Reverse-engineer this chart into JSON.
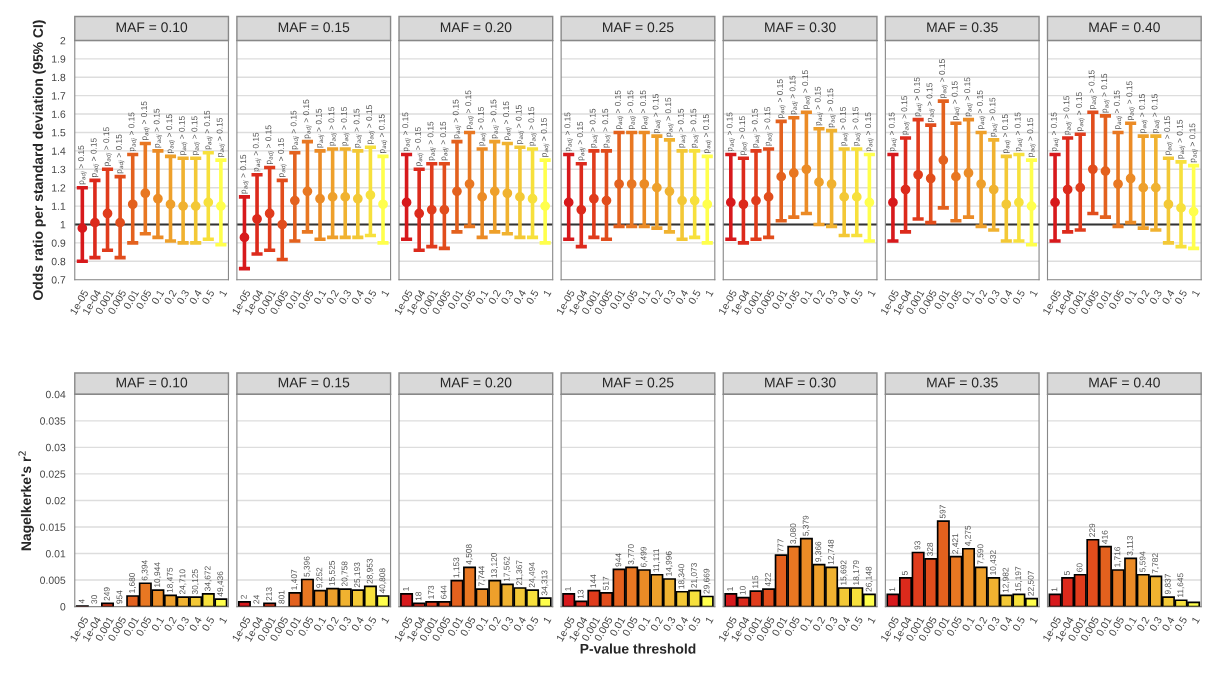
{
  "chart_data": [
    {
      "type": "scatter",
      "title": "MAF = 0.10",
      "ylabel": "Odds ratio per standard deviation (95% CI)",
      "categories": [
        "1e-05",
        "1e-04",
        "0.001",
        "0.005",
        "0.01",
        "0.05",
        "0.1",
        "0.2",
        "0.3",
        "0.4",
        "0.5",
        "1"
      ],
      "colors": [
        "#d7191c",
        "#dc2a1c",
        "#e03c1c",
        "#e14d1c",
        "#e3611e",
        "#e87722",
        "#eb8b26",
        "#eea02b",
        "#f0b230",
        "#f3c836",
        "#f7e03c",
        "#ffff4c"
      ],
      "marker": "circle",
      "values": [
        0.98,
        1.01,
        1.06,
        1.01,
        1.11,
        1.17,
        1.14,
        1.11,
        1.1,
        1.1,
        1.12,
        1.1
      ],
      "errors": [
        [
          0.8,
          1.2
        ],
        [
          0.82,
          1.24
        ],
        [
          0.86,
          1.3
        ],
        [
          0.82,
          1.26
        ],
        [
          0.9,
          1.38
        ],
        [
          0.95,
          1.44
        ],
        [
          0.93,
          1.4
        ],
        [
          0.91,
          1.37
        ],
        [
          0.9,
          1.36
        ],
        [
          0.9,
          1.36
        ],
        [
          0.92,
          1.39
        ],
        [
          0.89,
          1.35
        ]
      ],
      "ylim": [
        0.7,
        2
      ],
      "yticks": [
        0.7,
        0.8,
        0.9,
        1,
        1.1,
        1.2,
        1.3,
        1.4,
        1.5,
        1.6,
        1.7,
        1.8,
        1.9,
        2
      ],
      "ref_lines": [
        {
          "axis": "y",
          "value": 1,
          "color": "#333333"
        }
      ],
      "grid": "y",
      "annotations": [
        {
          "text": "p$_{adj}$ > 0.15",
          "x": "1e-05",
          "y": 1.2
        },
        {
          "text": "p$_{adj}$ > 0.15",
          "x": "1e-04",
          "y": 1.24
        },
        {
          "text": "p$_{adj}$ > 0.15",
          "x": "0.001",
          "y": 1.3
        },
        {
          "text": "p$_{adj}$ > 0.15",
          "x": "0.005",
          "y": 1.26
        },
        {
          "text": "p$_{adj}$ > 0.15",
          "x": "0.01",
          "y": 1.38
        },
        {
          "text": "p$_{adj}$ > 0.15",
          "x": "0.05",
          "y": 1.44
        },
        {
          "text": "p$_{adj}$ > 0.15",
          "x": "0.1",
          "y": 1.4
        },
        {
          "text": "p$_{adj}$ > 0.15",
          "x": "0.2",
          "y": 1.37
        },
        {
          "text": "p$_{adj}$ > 0.15",
          "x": "0.3",
          "y": 1.36
        },
        {
          "text": "p$_{adj}$ > 0.15",
          "x": "0.4",
          "y": 1.36
        },
        {
          "text": "p$_{adj}$ > 0.15",
          "x": "0.5",
          "y": 1.39
        },
        {
          "text": "p$_{adj}$ > 0.15",
          "x": "1",
          "y": 1.35
        }
      ]
    },
    {
      "type": "scatter",
      "title": "MAF = 0.15",
      "categories": [
        "1e-05",
        "1e-04",
        "0.001",
        "0.005",
        "0.01",
        "0.05",
        "0.1",
        "0.2",
        "0.3",
        "0.4",
        "0.5",
        "1"
      ],
      "colors": [
        "#d7191c",
        "#dc2a1c",
        "#e03c1c",
        "#e14d1c",
        "#e3611e",
        "#e87722",
        "#eb8b26",
        "#eea02b",
        "#f0b230",
        "#f3c836",
        "#f7e03c",
        "#ffff4c"
      ],
      "marker": "circle",
      "values": [
        0.93,
        1.03,
        1.06,
        1.0,
        1.13,
        1.18,
        1.14,
        1.15,
        1.15,
        1.14,
        1.16,
        1.11
      ],
      "errors": [
        [
          0.76,
          1.15
        ],
        [
          0.84,
          1.27
        ],
        [
          0.86,
          1.31
        ],
        [
          0.81,
          1.24
        ],
        [
          0.91,
          1.39
        ],
        [
          0.96,
          1.45
        ],
        [
          0.92,
          1.4
        ],
        [
          0.93,
          1.41
        ],
        [
          0.93,
          1.41
        ],
        [
          0.93,
          1.4
        ],
        [
          0.94,
          1.42
        ],
        [
          0.9,
          1.37
        ]
      ],
      "ylim": [
        0.7,
        2
      ],
      "yticks": [
        0.7,
        0.8,
        0.9,
        1,
        1.1,
        1.2,
        1.3,
        1.4,
        1.5,
        1.6,
        1.7,
        1.8,
        1.9,
        2
      ],
      "ref_lines": [
        {
          "axis": "y",
          "value": 1,
          "color": "#333333"
        }
      ],
      "grid": "y",
      "tick_labels": "x",
      "annotations": [
        {
          "text": "p$_{adj}$ > 0.15",
          "x": "1e-05",
          "y": 1.15
        },
        {
          "text": "p$_{adj}$ > 0.15",
          "x": "1e-04",
          "y": 1.27
        },
        {
          "text": "p$_{adj}$ > 0.15",
          "x": "0.001",
          "y": 1.31
        },
        {
          "text": "p$_{adj}$ > 0.15",
          "x": "0.005",
          "y": 1.24
        },
        {
          "text": "p$_{adj}$ > 0.15",
          "x": "0.01",
          "y": 1.39
        },
        {
          "text": "p$_{adj}$ > 0.15",
          "x": "0.05",
          "y": 1.45
        },
        {
          "text": "p$_{adj}$ > 0.15",
          "x": "0.1",
          "y": 1.4
        },
        {
          "text": "p$_{adj}$ > 0.15",
          "x": "0.2",
          "y": 1.41
        },
        {
          "text": "p$_{adj}$ > 0.15",
          "x": "0.3",
          "y": 1.41
        },
        {
          "text": "p$_{adj}$ > 0.15",
          "x": "0.4",
          "y": 1.4
        },
        {
          "text": "p$_{adj}$ > 0.15",
          "x": "0.5",
          "y": 1.42
        },
        {
          "text": "p$_{adj}$ > 0.15",
          "x": "1",
          "y": 1.37
        }
      ]
    },
    {
      "type": "scatter",
      "title": "MAF = 0.20",
      "categories": [
        "1e-05",
        "1e-04",
        "0.001",
        "0.005",
        "0.01",
        "0.05",
        "0.1",
        "0.2",
        "0.3",
        "0.4",
        "0.5",
        "1"
      ],
      "colors": [
        "#d7191c",
        "#dc2a1c",
        "#e03c1c",
        "#e14d1c",
        "#e3611e",
        "#e87722",
        "#eb8b26",
        "#eea02b",
        "#f0b230",
        "#f3c836",
        "#f7e03c",
        "#ffff4c"
      ],
      "marker": "circle",
      "values": [
        1.12,
        1.06,
        1.08,
        1.08,
        1.18,
        1.22,
        1.15,
        1.18,
        1.17,
        1.15,
        1.14,
        1.1
      ],
      "errors": [
        [
          0.92,
          1.38
        ],
        [
          0.86,
          1.3
        ],
        [
          0.88,
          1.33
        ],
        [
          0.87,
          1.33
        ],
        [
          0.96,
          1.45
        ],
        [
          0.99,
          1.5
        ],
        [
          0.93,
          1.41
        ],
        [
          0.96,
          1.45
        ],
        [
          0.95,
          1.44
        ],
        [
          0.93,
          1.42
        ],
        [
          0.93,
          1.41
        ],
        [
          0.9,
          1.35
        ]
      ],
      "ylim": [
        0.7,
        2
      ],
      "yticks": [
        0.7,
        0.8,
        0.9,
        1,
        1.1,
        1.2,
        1.3,
        1.4,
        1.5,
        1.6,
        1.7,
        1.8,
        1.9,
        2
      ],
      "ref_lines": [
        {
          "axis": "y",
          "value": 1,
          "color": "#333333"
        }
      ],
      "grid": "y",
      "tick_labels": "x",
      "annotations": [
        {
          "text": "p$_{adj}$ > 0.15",
          "x": "1e-05",
          "y": 1.38
        },
        {
          "text": "p$_{adj}$ > 0.15",
          "x": "1e-04",
          "y": 1.3
        },
        {
          "text": "p$_{adj}$ > 0.15",
          "x": "0.001",
          "y": 1.33
        },
        {
          "text": "p$_{adj}$ > 0.15",
          "x": "0.005",
          "y": 1.33
        },
        {
          "text": "p$_{adj}$ > 0.15",
          "x": "0.01",
          "y": 1.45
        },
        {
          "text": "p$_{adj}$ > 0.15",
          "x": "0.05",
          "y": 1.5
        },
        {
          "text": "p$_{adj}$ > 0.15",
          "x": "0.1",
          "y": 1.41
        },
        {
          "text": "p$_{adj}$ > 0.15",
          "x": "0.2",
          "y": 1.45
        },
        {
          "text": "p$_{adj}$ > 0.15",
          "x": "0.3",
          "y": 1.44
        },
        {
          "text": "p$_{adj}$ > 0.15",
          "x": "0.4",
          "y": 1.42
        },
        {
          "text": "p$_{adj}$ > 0.15",
          "x": "0.5",
          "y": 1.41
        },
        {
          "text": "p$_{adj}$ > 0.15",
          "x": "1",
          "y": 1.35
        }
      ]
    },
    {
      "type": "scatter",
      "title": "MAF = 0.25",
      "categories": [
        "1e-05",
        "1e-04",
        "0.001",
        "0.005",
        "0.01",
        "0.05",
        "0.1",
        "0.2",
        "0.3",
        "0.4",
        "0.5",
        "1"
      ],
      "colors": [
        "#d7191c",
        "#dc2a1c",
        "#e03c1c",
        "#e14d1c",
        "#e3611e",
        "#e87722",
        "#eb8b26",
        "#eea02b",
        "#f0b230",
        "#f3c836",
        "#f7e03c",
        "#ffff4c"
      ],
      "marker": "circle",
      "values": [
        1.12,
        1.08,
        1.14,
        1.13,
        1.22,
        1.22,
        1.22,
        1.2,
        1.18,
        1.13,
        1.13,
        1.11
      ],
      "errors": [
        [
          0.92,
          1.38
        ],
        [
          0.88,
          1.33
        ],
        [
          0.93,
          1.4
        ],
        [
          0.92,
          1.4
        ],
        [
          0.99,
          1.5
        ],
        [
          0.99,
          1.5
        ],
        [
          0.99,
          1.5
        ],
        [
          0.98,
          1.48
        ],
        [
          0.96,
          1.46
        ],
        [
          0.92,
          1.4
        ],
        [
          0.93,
          1.4
        ],
        [
          0.9,
          1.37
        ]
      ],
      "ylim": [
        0.7,
        2
      ],
      "yticks": [
        0.7,
        0.8,
        0.9,
        1,
        1.1,
        1.2,
        1.3,
        1.4,
        1.5,
        1.6,
        1.7,
        1.8,
        1.9,
        2
      ],
      "ref_lines": [
        {
          "axis": "y",
          "value": 1,
          "color": "#333333"
        }
      ],
      "grid": "y",
      "tick_labels": "x",
      "annotations": [
        {
          "text": "p$_{adj}$ > 0.15",
          "x": "1e-05",
          "y": 1.38
        },
        {
          "text": "p$_{adj}$ > 0.15",
          "x": "1e-04",
          "y": 1.33
        },
        {
          "text": "p$_{adj}$ > 0.15",
          "x": "0.001",
          "y": 1.4
        },
        {
          "text": "p$_{adj}$ > 0.15",
          "x": "0.005",
          "y": 1.4
        },
        {
          "text": "p$_{adj}$ > 0.15",
          "x": "0.01",
          "y": 1.5
        },
        {
          "text": "p$_{adj}$ > 0.15",
          "x": "0.05",
          "y": 1.5
        },
        {
          "text": "p$_{adj}$ > 0.15",
          "x": "0.1",
          "y": 1.5
        },
        {
          "text": "p$_{adj}$ > 0.15",
          "x": "0.2",
          "y": 1.48
        },
        {
          "text": "p$_{adj}$ > 0.15",
          "x": "0.3",
          "y": 1.46
        },
        {
          "text": "p$_{adj}$ > 0.15",
          "x": "0.4",
          "y": 1.4
        },
        {
          "text": "p$_{adj}$ > 0.15",
          "x": "0.5",
          "y": 1.4
        },
        {
          "text": "p$_{adj}$ > 0.15",
          "x": "1",
          "y": 1.37
        }
      ]
    },
    {
      "type": "scatter",
      "title": "MAF = 0.30",
      "categories": [
        "1e-05",
        "1e-04",
        "0.001",
        "0.005",
        "0.01",
        "0.05",
        "0.1",
        "0.2",
        "0.3",
        "0.4",
        "0.5",
        "1"
      ],
      "colors": [
        "#d7191c",
        "#dc2a1c",
        "#e03c1c",
        "#e14d1c",
        "#e3611e",
        "#e87722",
        "#eb8b26",
        "#eea02b",
        "#f0b230",
        "#f3c836",
        "#f7e03c",
        "#ffff4c"
      ],
      "marker": "circle",
      "values": [
        1.12,
        1.11,
        1.13,
        1.15,
        1.26,
        1.28,
        1.3,
        1.23,
        1.22,
        1.15,
        1.15,
        1.12
      ],
      "errors": [
        [
          0.92,
          1.38
        ],
        [
          0.9,
          1.36
        ],
        [
          0.92,
          1.4
        ],
        [
          0.93,
          1.41
        ],
        [
          1.02,
          1.56
        ],
        [
          1.04,
          1.58
        ],
        [
          1.06,
          1.61
        ],
        [
          1.0,
          1.52
        ],
        [
          0.99,
          1.51
        ],
        [
          0.94,
          1.41
        ],
        [
          0.94,
          1.41
        ],
        [
          0.91,
          1.38
        ]
      ],
      "ylim": [
        0.7,
        2
      ],
      "yticks": [
        0.7,
        0.8,
        0.9,
        1,
        1.1,
        1.2,
        1.3,
        1.4,
        1.5,
        1.6,
        1.7,
        1.8,
        1.9,
        2
      ],
      "ref_lines": [
        {
          "axis": "y",
          "value": 1,
          "color": "#333333"
        }
      ],
      "grid": "y",
      "tick_labels": "x",
      "annotations": [
        {
          "text": "p$_{adj}$ > 0.15",
          "x": "1e-05",
          "y": 1.38
        },
        {
          "text": "p$_{adj}$ > 0.15",
          "x": "1e-04",
          "y": 1.36
        },
        {
          "text": "p$_{adj}$ > 0.15",
          "x": "0.001",
          "y": 1.4
        },
        {
          "text": "p$_{adj}$ > 0.15",
          "x": "0.005",
          "y": 1.41
        },
        {
          "text": "p$_{adj}$ > 0.15",
          "x": "0.01",
          "y": 1.56
        },
        {
          "text": "p$_{adj}$ > 0.15",
          "x": "0.05",
          "y": 1.58
        },
        {
          "text": "p$_{adj}$ > 0.15",
          "x": "0.1",
          "y": 1.61
        },
        {
          "text": "p$_{adj}$ > 0.15",
          "x": "0.2",
          "y": 1.52
        },
        {
          "text": "p$_{adj}$ > 0.15",
          "x": "0.3",
          "y": 1.51
        },
        {
          "text": "p$_{adj}$ > 0.15",
          "x": "0.4",
          "y": 1.41
        },
        {
          "text": "p$_{adj}$ > 0.15",
          "x": "0.5",
          "y": 1.41
        },
        {
          "text": "p$_{adj}$ > 0.15",
          "x": "1",
          "y": 1.38
        }
      ]
    },
    {
      "type": "scatter",
      "title": "MAF = 0.35",
      "categories": [
        "1e-05",
        "1e-04",
        "0.001",
        "0.005",
        "0.01",
        "0.05",
        "0.1",
        "0.2",
        "0.3",
        "0.4",
        "0.5",
        "1"
      ],
      "colors": [
        "#d7191c",
        "#dc2a1c",
        "#e03c1c",
        "#e14d1c",
        "#e3611e",
        "#e87722",
        "#eb8b26",
        "#eea02b",
        "#f0b230",
        "#f3c836",
        "#f7e03c",
        "#ffff4c"
      ],
      "marker": "circle",
      "values": [
        1.12,
        1.19,
        1.27,
        1.25,
        1.35,
        1.26,
        1.28,
        1.22,
        1.19,
        1.11,
        1.12,
        1.1
      ],
      "errors": [
        [
          0.91,
          1.38
        ],
        [
          0.96,
          1.47
        ],
        [
          1.03,
          1.57
        ],
        [
          1.01,
          1.54
        ],
        [
          1.09,
          1.67
        ],
        [
          1.02,
          1.55
        ],
        [
          1.04,
          1.57
        ],
        [
          0.99,
          1.5
        ],
        [
          0.97,
          1.46
        ],
        [
          0.91,
          1.37
        ],
        [
          0.91,
          1.38
        ],
        [
          0.89,
          1.35
        ]
      ],
      "ylim": [
        0.7,
        2
      ],
      "yticks": [
        0.7,
        0.8,
        0.9,
        1,
        1.1,
        1.2,
        1.3,
        1.4,
        1.5,
        1.6,
        1.7,
        1.8,
        1.9,
        2
      ],
      "ref_lines": [
        {
          "axis": "y",
          "value": 1,
          "color": "#333333"
        }
      ],
      "grid": "y",
      "tick_labels": "x",
      "annotations": [
        {
          "text": "p$_{adj}$ > 0.15",
          "x": "1e-05",
          "y": 1.38
        },
        {
          "text": "p$_{adj}$ > 0.15",
          "x": "1e-04",
          "y": 1.47
        },
        {
          "text": "p$_{adj}$ > 0.15",
          "x": "0.001",
          "y": 1.57
        },
        {
          "text": "p$_{adj}$ > 0.15",
          "x": "0.005",
          "y": 1.54
        },
        {
          "text": "p$_{adj}$ > 0.15",
          "x": "0.01",
          "y": 1.67
        },
        {
          "text": "p$_{adj}$ > 0.15",
          "x": "0.05",
          "y": 1.55
        },
        {
          "text": "p$_{adj}$ > 0.15",
          "x": "0.1",
          "y": 1.57
        },
        {
          "text": "p$_{adj}$ > 0.15",
          "x": "0.2",
          "y": 1.5
        },
        {
          "text": "p$_{adj}$ > 0.15",
          "x": "0.3",
          "y": 1.46
        },
        {
          "text": "p$_{adj}$ > 0.15",
          "x": "0.4",
          "y": 1.37
        },
        {
          "text": "p$_{adj}$ > 0.15",
          "x": "0.5",
          "y": 1.38
        },
        {
          "text": "p$_{adj}$ > 0.15",
          "x": "1",
          "y": 1.35
        }
      ]
    },
    {
      "type": "scatter",
      "title": "MAF = 0.40",
      "categories": [
        "1e-05",
        "1e-04",
        "0.001",
        "0.005",
        "0.01",
        "0.05",
        "0.1",
        "0.2",
        "0.3",
        "0.4",
        "0.5",
        "1"
      ],
      "colors": [
        "#d7191c",
        "#dc2a1c",
        "#e03c1c",
        "#e14d1c",
        "#e3611e",
        "#e87722",
        "#eb8b26",
        "#eea02b",
        "#f0b230",
        "#f3c836",
        "#f7e03c",
        "#ffff4c"
      ],
      "marker": "circle",
      "values": [
        1.12,
        1.19,
        1.2,
        1.3,
        1.29,
        1.22,
        1.25,
        1.2,
        1.2,
        1.11,
        1.09,
        1.07
      ],
      "errors": [
        [
          0.91,
          1.38
        ],
        [
          0.96,
          1.47
        ],
        [
          0.97,
          1.49
        ],
        [
          1.06,
          1.61
        ],
        [
          1.04,
          1.59
        ],
        [
          0.99,
          1.5
        ],
        [
          1.01,
          1.55
        ],
        [
          0.98,
          1.48
        ],
        [
          0.97,
          1.48
        ],
        [
          0.9,
          1.36
        ],
        [
          0.88,
          1.34
        ],
        [
          0.87,
          1.32
        ]
      ],
      "ylim": [
        0.7,
        2
      ],
      "yticks": [
        0.7,
        0.8,
        0.9,
        1,
        1.1,
        1.2,
        1.3,
        1.4,
        1.5,
        1.6,
        1.7,
        1.8,
        1.9,
        2
      ],
      "ref_lines": [
        {
          "axis": "y",
          "value": 1,
          "color": "#333333"
        }
      ],
      "grid": "y",
      "tick_labels": "x",
      "annotations": [
        {
          "text": "p$_{adj}$ > 0.15",
          "x": "1e-05",
          "y": 1.38
        },
        {
          "text": "p$_{adj}$ > 0.15",
          "x": "1e-04",
          "y": 1.47
        },
        {
          "text": "p$_{adj}$ > 0.15",
          "x": "0.001",
          "y": 1.49
        },
        {
          "text": "p$_{adj}$ > 0.15",
          "x": "0.005",
          "y": 1.61
        },
        {
          "text": "p$_{adj}$ > 0.15",
          "x": "0.01",
          "y": 1.59
        },
        {
          "text": "p$_{adj}$ > 0.15",
          "x": "0.05",
          "y": 1.5
        },
        {
          "text": "p$_{adj}$ > 0.15",
          "x": "0.1",
          "y": 1.55
        },
        {
          "text": "p$_{adj}$ > 0.15",
          "x": "0.2",
          "y": 1.48
        },
        {
          "text": "p$_{adj}$ > 0.15",
          "x": "0.3",
          "y": 1.48
        },
        {
          "text": "p$_{adj}$ > 0.15",
          "x": "0.4",
          "y": 1.36
        },
        {
          "text": "p$_{adj}$ > 0.15",
          "x": "0.5",
          "y": 1.34
        },
        {
          "text": "p$_{adj}$ > 0.15",
          "x": "1",
          "y": 1.32
        }
      ]
    },
    {
      "type": "bar",
      "title": "MAF = 0.10",
      "ylabel": "Nagelkerke's r$^{2}$",
      "categories": [
        "1e-05",
        "1e-04",
        "0.001",
        "0.005",
        "0.01",
        "0.05",
        "0.1",
        "0.2",
        "0.3",
        "0.4",
        "0.5",
        "1"
      ],
      "colors": [
        "#d7191c",
        "#dc2a1c",
        "#e03c1c",
        "#e14d1c",
        "#e3611e",
        "#e87722",
        "#eb8b26",
        "#eea02b",
        "#f0b230",
        "#f3c836",
        "#f7e03c",
        "#ffff4c"
      ],
      "values": [
        0.0001,
        0,
        0.0006,
        0,
        0.002,
        0.0044,
        0.0031,
        0.0021,
        0.0018,
        0.0018,
        0.0024,
        0.0014
      ],
      "ylim": [
        0,
        0.04
      ],
      "yticks": [
        0,
        0.005,
        0.01,
        0.015,
        0.02,
        0.025,
        0.03,
        0.035,
        0.04
      ],
      "grid": "y",
      "annotations": [
        {
          "text": "4",
          "x": "1e-05",
          "y": 0.0001
        },
        {
          "text": "30",
          "x": "1e-04",
          "y": 0
        },
        {
          "text": "249",
          "x": "0.001",
          "y": 0.0006
        },
        {
          "text": "954",
          "x": "0.005",
          "y": 0
        },
        {
          "text": "1,680",
          "x": "0.01",
          "y": 0.002
        },
        {
          "text": "6,394",
          "x": "0.05",
          "y": 0.0044
        },
        {
          "text": "10,944",
          "x": "0.1",
          "y": 0.0031
        },
        {
          "text": "18,475",
          "x": "0.2",
          "y": 0.0021
        },
        {
          "text": "24,710",
          "x": "0.3",
          "y": 0.0018
        },
        {
          "text": "30,125",
          "x": "0.4",
          "y": 0.0018
        },
        {
          "text": "34,672",
          "x": "0.5",
          "y": 0.0024
        },
        {
          "text": "49,436",
          "x": "1",
          "y": 0.0014
        }
      ]
    },
    {
      "type": "bar",
      "title": "MAF = 0.15",
      "categories": [
        "1e-05",
        "1e-04",
        "0.001",
        "0.005",
        "0.01",
        "0.05",
        "0.1",
        "0.2",
        "0.3",
        "0.4",
        "0.5",
        "1"
      ],
      "colors": [
        "#d7191c",
        "#dc2a1c",
        "#e03c1c",
        "#e14d1c",
        "#e3611e",
        "#e87722",
        "#eb8b26",
        "#eea02b",
        "#f0b230",
        "#f3c836",
        "#f7e03c",
        "#ffff4c"
      ],
      "values": [
        0.0009,
        0,
        0.0006,
        0,
        0.0026,
        0.0051,
        0.003,
        0.0034,
        0.0033,
        0.0031,
        0.0038,
        0.002
      ],
      "ylim": [
        0,
        0.04
      ],
      "yticks": [
        0,
        0.005,
        0.01,
        0.015,
        0.02,
        0.025,
        0.03,
        0.035,
        0.04
      ],
      "grid": "y",
      "tick_labels": "x",
      "annotations": [
        {
          "text": "2",
          "x": "1e-05",
          "y": 0.0009
        },
        {
          "text": "24",
          "x": "1e-04",
          "y": 0
        },
        {
          "text": "213",
          "x": "0.001",
          "y": 0.0006
        },
        {
          "text": "801",
          "x": "0.005",
          "y": 0
        },
        {
          "text": "1,407",
          "x": "0.01",
          "y": 0.0026
        },
        {
          "text": "5,396",
          "x": "0.05",
          "y": 0.0051
        },
        {
          "text": "9,252",
          "x": "0.1",
          "y": 0.003
        },
        {
          "text": "15,525",
          "x": "0.2",
          "y": 0.0034
        },
        {
          "text": "20,758",
          "x": "0.3",
          "y": 0.0033
        },
        {
          "text": "25,193",
          "x": "0.4",
          "y": 0.0031
        },
        {
          "text": "28,953",
          "x": "0.5",
          "y": 0.0038
        },
        {
          "text": "40,808",
          "x": "1",
          "y": 0.002
        }
      ]
    },
    {
      "type": "bar",
      "title": "MAF = 0.20",
      "categories": [
        "1e-05",
        "1e-04",
        "0.001",
        "0.005",
        "0.01",
        "0.05",
        "0.1",
        "0.2",
        "0.3",
        "0.4",
        "0.5",
        "1"
      ],
      "colors": [
        "#d7191c",
        "#dc2a1c",
        "#e03c1c",
        "#e14d1c",
        "#e3611e",
        "#e87722",
        "#eb8b26",
        "#eea02b",
        "#f0b230",
        "#f3c836",
        "#f7e03c",
        "#ffff4c"
      ],
      "values": [
        0.0024,
        0.0006,
        0.0009,
        0.0009,
        0.0049,
        0.0074,
        0.0033,
        0.0049,
        0.0042,
        0.0035,
        0.0031,
        0.0016
      ],
      "ylim": [
        0,
        0.04
      ],
      "yticks": [
        0,
        0.005,
        0.01,
        0.015,
        0.02,
        0.025,
        0.03,
        0.035,
        0.04
      ],
      "grid": "y",
      "tick_labels": "x",
      "annotations": [
        {
          "text": "1",
          "x": "1e-05",
          "y": 0.0024
        },
        {
          "text": "18",
          "x": "1e-04",
          "y": 0.0006
        },
        {
          "text": "173",
          "x": "0.001",
          "y": 0.0009
        },
        {
          "text": "644",
          "x": "0.005",
          "y": 0.0009
        },
        {
          "text": "1,153",
          "x": "0.01",
          "y": 0.0049
        },
        {
          "text": "4,508",
          "x": "0.05",
          "y": 0.0074
        },
        {
          "text": "7,744",
          "x": "0.1",
          "y": 0.0033
        },
        {
          "text": "13,120",
          "x": "0.2",
          "y": 0.0049
        },
        {
          "text": "17,562",
          "x": "0.3",
          "y": 0.0042
        },
        {
          "text": "21,367",
          "x": "0.4",
          "y": 0.0035
        },
        {
          "text": "24,494",
          "x": "0.5",
          "y": 0.0031
        },
        {
          "text": "34,313",
          "x": "1",
          "y": 0.0016
        }
      ]
    },
    {
      "type": "bar",
      "title": "MAF = 0.25",
      "xlabel": "P-value threshold",
      "categories": [
        "1e-05",
        "1e-04",
        "0.001",
        "0.005",
        "0.01",
        "0.05",
        "0.1",
        "0.2",
        "0.3",
        "0.4",
        "0.5",
        "1"
      ],
      "colors": [
        "#d7191c",
        "#dc2a1c",
        "#e03c1c",
        "#e14d1c",
        "#e3611e",
        "#e87722",
        "#eb8b26",
        "#eea02b",
        "#f0b230",
        "#f3c836",
        "#f7e03c",
        "#ffff4c"
      ],
      "values": [
        0.0024,
        0.001,
        0.003,
        0.0026,
        0.007,
        0.0074,
        0.0069,
        0.006,
        0.0052,
        0.0028,
        0.003,
        0.0019
      ],
      "ylim": [
        0,
        0.04
      ],
      "yticks": [
        0,
        0.005,
        0.01,
        0.015,
        0.02,
        0.025,
        0.03,
        0.035,
        0.04
      ],
      "grid": "y",
      "tick_labels": "x",
      "annotations": [
        {
          "text": "1",
          "x": "1e-05",
          "y": 0.0024
        },
        {
          "text": "13",
          "x": "1e-04",
          "y": 0.001
        },
        {
          "text": "144",
          "x": "0.001",
          "y": 0.003
        },
        {
          "text": "517",
          "x": "0.005",
          "y": 0.0026
        },
        {
          "text": "944",
          "x": "0.01",
          "y": 0.007
        },
        {
          "text": "3,770",
          "x": "0.05",
          "y": 0.0074
        },
        {
          "text": "6,499",
          "x": "0.1",
          "y": 0.0069
        },
        {
          "text": "11,111",
          "x": "0.2",
          "y": 0.006
        },
        {
          "text": "14,996",
          "x": "0.3",
          "y": 0.0052
        },
        {
          "text": "18,340",
          "x": "0.4",
          "y": 0.0028
        },
        {
          "text": "21,073",
          "x": "0.5",
          "y": 0.003
        },
        {
          "text": "29,669",
          "x": "1",
          "y": 0.0019
        }
      ]
    },
    {
      "type": "bar",
      "title": "MAF = 0.30",
      "categories": [
        "1e-05",
        "1e-04",
        "0.001",
        "0.005",
        "0.01",
        "0.05",
        "0.1",
        "0.2",
        "0.3",
        "0.4",
        "0.5",
        "1"
      ],
      "colors": [
        "#d7191c",
        "#dc2a1c",
        "#e03c1c",
        "#e14d1c",
        "#e3611e",
        "#e87722",
        "#eb8b26",
        "#eea02b",
        "#f0b230",
        "#f3c836",
        "#f7e03c",
        "#ffff4c"
      ],
      "values": [
        0.0024,
        0.0017,
        0.0029,
        0.0033,
        0.0097,
        0.0113,
        0.0128,
        0.0079,
        0.0074,
        0.0035,
        0.0035,
        0.0023
      ],
      "ylim": [
        0,
        0.04
      ],
      "yticks": [
        0,
        0.005,
        0.01,
        0.015,
        0.02,
        0.025,
        0.03,
        0.035,
        0.04
      ],
      "grid": "y",
      "tick_labels": "x",
      "annotations": [
        {
          "text": "1",
          "x": "1e-05",
          "y": 0.0024
        },
        {
          "text": "10",
          "x": "1e-04",
          "y": 0.0017
        },
        {
          "text": "115",
          "x": "0.001",
          "y": 0.0029
        },
        {
          "text": "422",
          "x": "0.005",
          "y": 0.0033
        },
        {
          "text": "777",
          "x": "0.01",
          "y": 0.0097
        },
        {
          "text": "3,080",
          "x": "0.05",
          "y": 0.0113
        },
        {
          "text": "5,379",
          "x": "0.1",
          "y": 0.0128
        },
        {
          "text": "9,366",
          "x": "0.2",
          "y": 0.0079
        },
        {
          "text": "12,748",
          "x": "0.3",
          "y": 0.0074
        },
        {
          "text": "15,692",
          "x": "0.4",
          "y": 0.0035
        },
        {
          "text": "18,179",
          "x": "0.5",
          "y": 0.0035
        },
        {
          "text": "26,148",
          "x": "1",
          "y": 0.0023
        }
      ]
    },
    {
      "type": "bar",
      "title": "MAF = 0.35",
      "categories": [
        "1e-05",
        "1e-04",
        "0.001",
        "0.005",
        "0.01",
        "0.05",
        "0.1",
        "0.2",
        "0.3",
        "0.4",
        "0.5",
        "1"
      ],
      "colors": [
        "#d7191c",
        "#dc2a1c",
        "#e03c1c",
        "#e14d1c",
        "#e3611e",
        "#e87722",
        "#eb8b26",
        "#eea02b",
        "#f0b230",
        "#f3c836",
        "#f7e03c",
        "#ffff4c"
      ],
      "values": [
        0.0023,
        0.0054,
        0.0102,
        0.009,
        0.0161,
        0.0094,
        0.0109,
        0.0074,
        0.0054,
        0.0021,
        0.0023,
        0.0015
      ],
      "ylim": [
        0,
        0.04
      ],
      "yticks": [
        0,
        0.005,
        0.01,
        0.015,
        0.02,
        0.025,
        0.03,
        0.035,
        0.04
      ],
      "grid": "y",
      "tick_labels": "x",
      "annotations": [
        {
          "text": "1",
          "x": "1e-05",
          "y": 0.0023
        },
        {
          "text": "5",
          "x": "1e-04",
          "y": 0.0054
        },
        {
          "text": "93",
          "x": "0.001",
          "y": 0.0102
        },
        {
          "text": "328",
          "x": "0.005",
          "y": 0.009
        },
        {
          "text": "597",
          "x": "0.01",
          "y": 0.0161
        },
        {
          "text": "2,421",
          "x": "0.05",
          "y": 0.0094
        },
        {
          "text": "4,275",
          "x": "0.1",
          "y": 0.0109
        },
        {
          "text": "7,590",
          "x": "0.2",
          "y": 0.0074
        },
        {
          "text": "10,432",
          "x": "0.3",
          "y": 0.0054
        },
        {
          "text": "12,982",
          "x": "0.4",
          "y": 0.0021
        },
        {
          "text": "15,197",
          "x": "0.5",
          "y": 0.0023
        },
        {
          "text": "22,507",
          "x": "1",
          "y": 0.0015
        }
      ]
    },
    {
      "type": "bar",
      "title": "MAF = 0.40",
      "categories": [
        "1e-05",
        "1e-04",
        "0.001",
        "0.005",
        "0.01",
        "0.05",
        "0.1",
        "0.2",
        "0.3",
        "0.4",
        "0.5",
        "1"
      ],
      "colors": [
        "#d7191c",
        "#dc2a1c",
        "#e03c1c",
        "#e14d1c",
        "#e3611e",
        "#e87722",
        "#eb8b26",
        "#eea02b",
        "#f0b230",
        "#f3c836",
        "#f7e03c",
        "#ffff4c"
      ],
      "values": [
        0.0023,
        0.0054,
        0.006,
        0.0126,
        0.0113,
        0.0069,
        0.0091,
        0.006,
        0.0057,
        0.0018,
        0.0012,
        0.0008
      ],
      "ylim": [
        0,
        0.04
      ],
      "yticks": [
        0,
        0.005,
        0.01,
        0.015,
        0.02,
        0.025,
        0.03,
        0.035,
        0.04
      ],
      "grid": "y",
      "tick_labels": "x",
      "annotations": [
        {
          "text": "1",
          "x": "1e-05",
          "y": 0.0023
        },
        {
          "text": "5",
          "x": "1e-04",
          "y": 0.0054
        },
        {
          "text": "60",
          "x": "0.001",
          "y": 0.006
        },
        {
          "text": "229",
          "x": "0.005",
          "y": 0.0126
        },
        {
          "text": "416",
          "x": "0.01",
          "y": 0.0113
        },
        {
          "text": "1,716",
          "x": "0.05",
          "y": 0.0069
        },
        {
          "text": "3,113",
          "x": "0.1",
          "y": 0.0091
        },
        {
          "text": "5,594",
          "x": "0.2",
          "y": 0.006
        },
        {
          "text": "7,782",
          "x": "0.3",
          "y": 0.0057
        },
        {
          "text": "9,837",
          "x": "0.4",
          "y": 0.0018
        },
        {
          "text": "11,645",
          "x": "0.5",
          "y": 0.0012
        }
      ]
    }
  ]
}
